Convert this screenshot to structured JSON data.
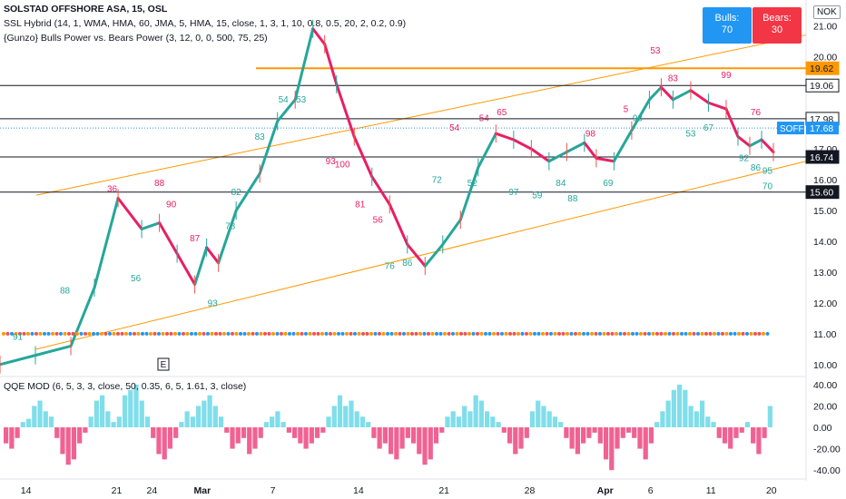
{
  "header": {
    "symbol_line": "SOLSTAD OFFSHORE ASA, 15, OSL",
    "indicator_1": "SSL Hybrid (14, 1, WMA, HMA, 60, JMA, 5, HMA, 15, close, 1, 3, 1, 10, 0.8, 0.5, 20, 2, 0.2, 0.9)",
    "indicator_2": "{Gunzo} Bulls Power vs. Bears Power (3, 12, 0, 0, 500, 75, 25)",
    "currency": "NOK"
  },
  "bulls_bears": {
    "bulls_label": "Bulls:",
    "bulls_value": "70",
    "bears_label": "Bears:",
    "bears_value": "30",
    "bulls_color": "#2196f3",
    "bears_color": "#f23645"
  },
  "lower_pane": {
    "title": "QQE MOD (6, 5, 3, 3, close, 50, 0.35, 6, 5, 1.61, 3, close)"
  },
  "markers": {
    "earnings": "E"
  },
  "chart_data": {
    "type": "line",
    "title": "SOLSTAD OFFSHORE ASA, 15, OSL",
    "x_ticks": [
      "14",
      "21",
      "24",
      "Mar",
      "7",
      "14",
      "21",
      "28",
      "Apr",
      "6",
      "11",
      "20"
    ],
    "y_ticks": [
      "21.00",
      "20.00",
      "17.00",
      "16.00",
      "15.00",
      "14.00",
      "13.00",
      "12.00",
      "11.00",
      "10.00"
    ],
    "ylim": [
      9.7,
      21.6
    ],
    "price_labels": {
      "orange_level": "19.62",
      "level_1": "19.06",
      "level_2": "17.98",
      "current_symbol": "SOFF",
      "current_price": "17.68",
      "level_3": "16.74",
      "level_4": "15.60"
    },
    "horizontal_levels": [
      {
        "value": 19.62,
        "color": "#ff9800"
      },
      {
        "value": 19.06,
        "color": "#131722"
      },
      {
        "value": 17.98,
        "color": "#131722"
      },
      {
        "value": 16.74,
        "color": "#131722"
      },
      {
        "value": 15.6,
        "color": "#131722"
      }
    ],
    "current_price": 17.68,
    "price_series": [
      [
        0,
        10.0
      ],
      [
        6,
        10.3
      ],
      [
        12,
        10.6
      ],
      [
        16,
        12.5
      ],
      [
        20,
        15.4
      ],
      [
        24,
        14.4
      ],
      [
        27,
        14.6
      ],
      [
        30,
        13.6
      ],
      [
        33,
        12.6
      ],
      [
        35,
        13.8
      ],
      [
        37,
        13.3
      ],
      [
        40,
        15.0
      ],
      [
        44,
        16.2
      ],
      [
        47,
        17.9
      ],
      [
        50,
        18.6
      ],
      [
        53,
        20.9
      ],
      [
        55,
        20.4
      ],
      [
        57,
        19.1
      ],
      [
        60,
        17.4
      ],
      [
        63,
        16.1
      ],
      [
        66,
        15.2
      ],
      [
        69,
        13.9
      ],
      [
        72,
        13.2
      ],
      [
        75,
        13.9
      ],
      [
        78,
        14.7
      ],
      [
        81,
        16.4
      ],
      [
        84,
        17.5
      ],
      [
        87,
        17.3
      ],
      [
        90,
        17.0
      ],
      [
        93,
        16.6
      ],
      [
        96,
        16.9
      ],
      [
        99,
        17.2
      ],
      [
        101,
        16.7
      ],
      [
        104,
        16.6
      ],
      [
        107,
        17.6
      ],
      [
        110,
        18.6
      ],
      [
        112,
        19.0
      ],
      [
        114,
        18.6
      ],
      [
        117,
        18.9
      ],
      [
        120,
        18.5
      ],
      [
        123,
        18.3
      ],
      [
        125,
        17.4
      ],
      [
        127,
        17.1
      ],
      [
        129,
        17.3
      ],
      [
        131,
        16.9
      ]
    ],
    "channel_upper": [
      [
        0,
        15.5
      ],
      [
        131,
        20.7
      ]
    ],
    "channel_lower": [
      [
        0,
        10.5
      ],
      [
        131,
        16.6
      ]
    ],
    "number_labels": [
      {
        "x": 3,
        "y": 10.8,
        "text": "91",
        "color": "#26a69a"
      },
      {
        "x": 11,
        "y": 12.3,
        "text": "88",
        "color": "#26a69a"
      },
      {
        "x": 19,
        "y": 15.6,
        "text": "36",
        "color": "#e91e63"
      },
      {
        "x": 23,
        "y": 12.7,
        "text": "56",
        "color": "#26a69a"
      },
      {
        "x": 27,
        "y": 15.8,
        "text": "88",
        "color": "#e91e63"
      },
      {
        "x": 29,
        "y": 15.1,
        "text": "90",
        "color": "#e91e63"
      },
      {
        "x": 33,
        "y": 14.0,
        "text": "87",
        "color": "#e91e63"
      },
      {
        "x": 36,
        "y": 11.9,
        "text": "93",
        "color": "#26a69a"
      },
      {
        "x": 39,
        "y": 14.4,
        "text": "78",
        "color": "#26a69a"
      },
      {
        "x": 40,
        "y": 15.5,
        "text": "82",
        "color": "#26a69a"
      },
      {
        "x": 44,
        "y": 17.3,
        "text": "83",
        "color": "#26a69a"
      },
      {
        "x": 48,
        "y": 18.5,
        "text": "54",
        "color": "#26a69a"
      },
      {
        "x": 51,
        "y": 18.5,
        "text": "53",
        "color": "#26a69a"
      },
      {
        "x": 56,
        "y": 16.5,
        "text": "93",
        "color": "#e91e63"
      },
      {
        "x": 58,
        "y": 16.4,
        "text": "100",
        "color": "#e91e63"
      },
      {
        "x": 61,
        "y": 15.1,
        "text": "81",
        "color": "#e91e63"
      },
      {
        "x": 64,
        "y": 14.6,
        "text": "56",
        "color": "#e91e63"
      },
      {
        "x": 66,
        "y": 13.1,
        "text": "76",
        "color": "#26a69a"
      },
      {
        "x": 69,
        "y": 13.2,
        "text": "86",
        "color": "#26a69a"
      },
      {
        "x": 74,
        "y": 15.9,
        "text": "72",
        "color": "#26a69a"
      },
      {
        "x": 77,
        "y": 17.6,
        "text": "54",
        "color": "#e91e63"
      },
      {
        "x": 80,
        "y": 15.8,
        "text": "52",
        "color": "#26a69a"
      },
      {
        "x": 82,
        "y": 17.9,
        "text": "54",
        "color": "#e91e63"
      },
      {
        "x": 85,
        "y": 18.1,
        "text": "65",
        "color": "#e91e63"
      },
      {
        "x": 87,
        "y": 15.5,
        "text": "97",
        "color": "#26a69a"
      },
      {
        "x": 91,
        "y": 15.4,
        "text": "59",
        "color": "#26a69a"
      },
      {
        "x": 95,
        "y": 15.8,
        "text": "84",
        "color": "#26a69a"
      },
      {
        "x": 97,
        "y": 15.3,
        "text": "88",
        "color": "#26a69a"
      },
      {
        "x": 100,
        "y": 17.4,
        "text": "98",
        "color": "#e91e63"
      },
      {
        "x": 103,
        "y": 15.8,
        "text": "69",
        "color": "#26a69a"
      },
      {
        "x": 106,
        "y": 18.2,
        "text": "5",
        "color": "#e91e63"
      },
      {
        "x": 108,
        "y": 17.9,
        "text": "93",
        "color": "#26a69a"
      },
      {
        "x": 111,
        "y": 20.1,
        "text": "53",
        "color": "#e91e63"
      },
      {
        "x": 114,
        "y": 19.2,
        "text": "83",
        "color": "#e91e63"
      },
      {
        "x": 117,
        "y": 17.4,
        "text": "53",
        "color": "#26a69a"
      },
      {
        "x": 120,
        "y": 17.6,
        "text": "67",
        "color": "#26a69a"
      },
      {
        "x": 123,
        "y": 19.3,
        "text": "99",
        "color": "#e91e63"
      },
      {
        "x": 126,
        "y": 16.6,
        "text": "92",
        "color": "#26a69a"
      },
      {
        "x": 128,
        "y": 16.3,
        "text": "86",
        "color": "#26a69a"
      },
      {
        "x": 128,
        "y": 18.1,
        "text": "76",
        "color": "#e91e63"
      },
      {
        "x": 130,
        "y": 16.2,
        "text": "95",
        "color": "#26a69a"
      },
      {
        "x": 130,
        "y": 15.7,
        "text": "70",
        "color": "#26a69a"
      }
    ],
    "qqe": {
      "y_ticks": [
        "40.00",
        "20.00",
        "0.00",
        "-20.00",
        "-40.00"
      ],
      "ylim": [
        -45,
        45
      ],
      "values": [
        -15,
        -20,
        -10,
        5,
        8,
        20,
        25,
        15,
        10,
        -10,
        -25,
        -35,
        -30,
        -15,
        -5,
        10,
        25,
        30,
        15,
        5,
        10,
        30,
        35,
        40,
        25,
        10,
        -10,
        -25,
        -30,
        -20,
        -10,
        5,
        15,
        10,
        20,
        25,
        30,
        20,
        10,
        -5,
        -20,
        -15,
        -10,
        -25,
        -20,
        -10,
        5,
        10,
        15,
        5,
        -5,
        -10,
        -15,
        -20,
        -15,
        -10,
        -5,
        10,
        20,
        30,
        20,
        25,
        15,
        10,
        5,
        -10,
        -20,
        -15,
        -25,
        -30,
        -20,
        -10,
        -15,
        -25,
        -35,
        -30,
        -15,
        -5,
        10,
        15,
        10,
        20,
        15,
        30,
        25,
        15,
        10,
        5,
        -5,
        -15,
        -25,
        -20,
        -10,
        15,
        25,
        20,
        15,
        10,
        5,
        -10,
        -20,
        -25,
        -15,
        -10,
        -5,
        -15,
        -30,
        -40,
        -20,
        -10,
        -5,
        -10,
        -20,
        -30,
        -15,
        5,
        15,
        25,
        35,
        40,
        35,
        20,
        15,
        25,
        10,
        5,
        -10,
        -15,
        -20,
        -10,
        -5,
        5,
        -15,
        -25,
        -10,
        20
      ]
    }
  }
}
